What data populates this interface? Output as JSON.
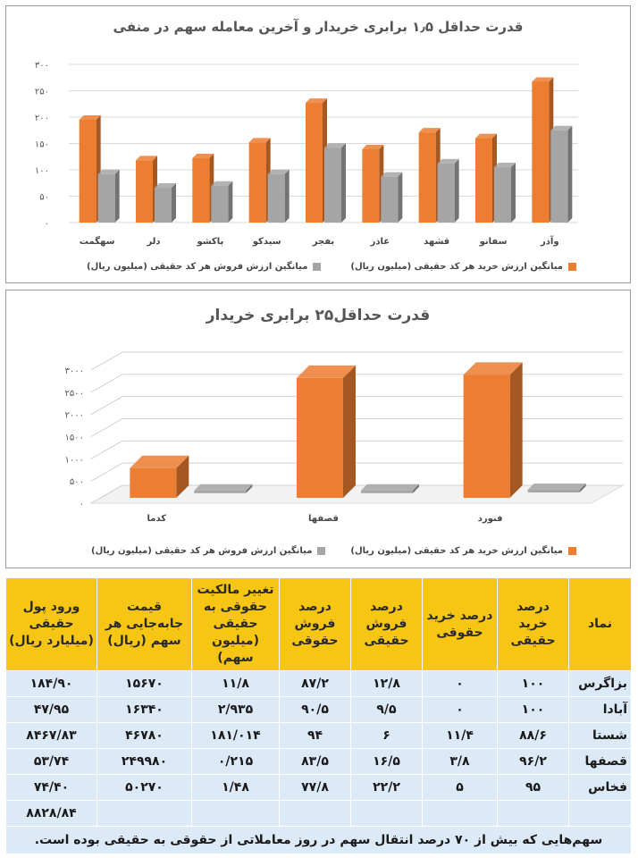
{
  "charts": {
    "chart1": {
      "title": "قدرت حداقل ۱٫۵ برابری خریدار و آخرین معامله سهم در منفی",
      "legend_buy": "میانگین ارزش خرید هر کد حقیقی (میلیون ریال)",
      "legend_sell": "میانگین ارزش فروش هر کد حقیقی (میلیون ریال)"
    },
    "chart2": {
      "title": "قدرت حداقل۲۵ برابری خریدار",
      "legend_buy": "میانگین ارزش خرید هر کد حقیقی (میلیون ریال)",
      "legend_sell": "میانگین ارزش فروش هر کد حقیقی (میلیون ریال)"
    }
  },
  "chart_data": [
    {
      "type": "bar",
      "title": "قدرت حداقل ۱٫۵ برابری خریدار و آخرین معامله سهم در منفی",
      "categories": [
        "سهگمت",
        "دلر",
        "پاکشو",
        "سیدکو",
        "بفجر",
        "غاذر",
        "قشهد",
        "سفانو",
        "وآذر"
      ],
      "series": [
        {
          "name": "میانگین ارزش خرید هر کد حقیقی (میلیون ریال)",
          "values": [
            195,
            118,
            122,
            152,
            227,
            139,
            171,
            160,
            267
          ]
        },
        {
          "name": "میانگین ارزش فروش هر کد حقیقی (میلیون ریال)",
          "values": [
            92,
            66,
            70,
            92,
            142,
            87,
            112,
            105,
            175
          ]
        }
      ],
      "ylim": [
        0,
        300
      ],
      "yticks": [
        "۰",
        "۵۰",
        "۱۰۰",
        "۱۵۰",
        "۲۰۰",
        "۲۵۰",
        "۳۰۰"
      ],
      "grid": true,
      "legend_position": "bottom",
      "colors": {
        "buy": "#ed7d31",
        "sell": "#a5a5a5"
      }
    },
    {
      "type": "bar",
      "title": "قدرت حداقل۲۵ برابری خریدار",
      "categories": [
        "کدما",
        "قصفها",
        "فنورد"
      ],
      "series": [
        {
          "name": "میانگین ارزش خرید هر کد حقیقی (میلیون ریال)",
          "values": [
            670,
            2700,
            2770
          ]
        },
        {
          "name": "میانگین ارزش فروش هر کد حقیقی (میلیون ریال)",
          "values": [
            25,
            25,
            40
          ]
        }
      ],
      "ylim": [
        0,
        3000
      ],
      "yticks": [
        "۰",
        "۵۰۰",
        "۱۰۰۰",
        "۱۵۰۰",
        "۲۰۰۰",
        "۲۵۰۰",
        "۳۰۰۰"
      ],
      "grid": true,
      "legend_position": "bottom",
      "colors": {
        "buy": "#ed7d31",
        "sell": "#a5a5a5"
      }
    }
  ],
  "table": {
    "headers": [
      "نماد",
      "درصد خرید حقیقی",
      "درصد خرید حقوقی",
      "درصد فروش حقیقی",
      "درصد فروش حقوقی",
      "تغییر مالکیت حقوقی به حقیقی (میلیون سهم)",
      "قیمت جابه‌جایی هر سهم (ریال)",
      "ورود پول حقیقی (میلیارد ریال)"
    ],
    "rows": [
      [
        "بزاگرس",
        "۱۰۰",
        "۰",
        "۱۲/۸",
        "۸۷/۲",
        "۱۱/۸",
        "۱۵۶۷۰",
        "۱۸۴/۹۰"
      ],
      [
        "آبادا",
        "۱۰۰",
        "۰",
        "۹/۵",
        "۹۰/۵",
        "۲/۹۳۵",
        "۱۶۳۴۰",
        "۴۷/۹۵"
      ],
      [
        "شستا",
        "۸۸/۶",
        "۱۱/۴",
        "۶",
        "۹۴",
        "۱۸۱/۰۱۴",
        "۴۶۷۸۰",
        "۸۴۶۷/۸۳"
      ],
      [
        "قصفها",
        "۹۶/۲",
        "۳/۸",
        "۱۶/۵",
        "۸۳/۵",
        "۰/۲۱۵",
        "۲۴۹۹۸۰",
        "۵۳/۷۴"
      ],
      [
        "فخاس",
        "۹۵",
        "۵",
        "۲۲/۲",
        "۷۷/۸",
        "۱/۴۸",
        "۵۰۲۷۰",
        "۷۴/۴۰"
      ]
    ],
    "total": "۸۸۲۸/۸۴",
    "footnote": "سهم‌هایی که بیش از ۷۰ درصد انتقال سهم در روز معاملاتی از حقوقی به حقیقی بوده است."
  },
  "colors": {
    "header_bg": "#f7c615",
    "row_bg": "#dce9f7",
    "buy": "#ed7d31",
    "sell": "#a5a5a5"
  }
}
